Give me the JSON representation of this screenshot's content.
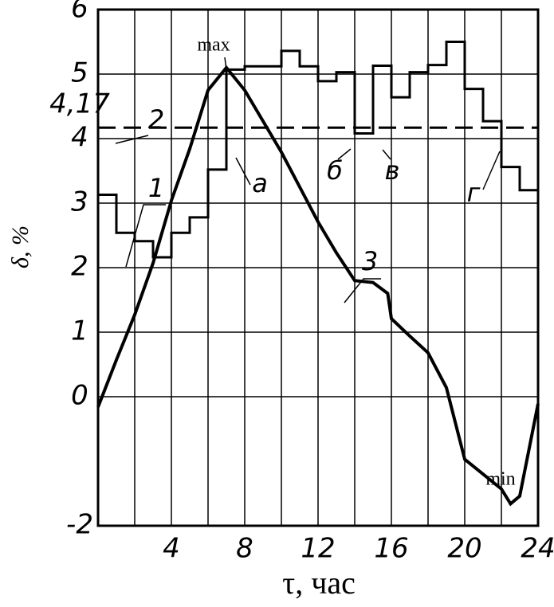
{
  "chart_data": {
    "type": "line",
    "xlabel": "τ, час",
    "ylabel": "δ, %",
    "xlim": [
      0,
      24
    ],
    "xticks": [
      4,
      8,
      12,
      16,
      20,
      24
    ],
    "xgrid": [
      0,
      2,
      4,
      6,
      8,
      10,
      12,
      14,
      16,
      18,
      20,
      22,
      24
    ],
    "ylim": [
      -2,
      6
    ],
    "yticks": [
      -2,
      0,
      1,
      2,
      3,
      4,
      {
        "value": 4.17,
        "label": "4,17"
      },
      5,
      6
    ],
    "grid": true,
    "series": [
      {
        "name": "1",
        "type": "step",
        "color": "#000",
        "x": [
          0,
          1,
          2,
          3,
          4,
          5,
          6,
          7,
          8,
          9,
          10,
          11,
          12,
          13,
          14,
          15,
          16,
          17,
          18,
          19,
          20,
          21,
          22,
          23
        ],
        "values": [
          3.13,
          2.54,
          2.41,
          2.16,
          2.54,
          2.78,
          3.52,
          5.07,
          5.12,
          5.12,
          5.36,
          5.12,
          4.89,
          5.03,
          4.08,
          5.13,
          4.64,
          5.03,
          5.14,
          5.5,
          4.77,
          4.27,
          3.56,
          3.2
        ]
      },
      {
        "name": "2",
        "type": "dashed",
        "color": "#000",
        "x": [
          0,
          24
        ],
        "values": [
          4.17,
          4.17
        ]
      },
      {
        "name": "3",
        "type": "line",
        "color": "#000",
        "x": [
          0,
          1,
          2,
          3,
          4,
          5,
          6,
          7,
          8,
          9,
          10,
          11,
          12,
          13,
          14,
          15,
          15.8,
          16,
          17,
          18,
          19,
          20,
          21,
          22,
          22.5,
          23,
          24
        ],
        "values": [
          -0.16,
          0.57,
          1.27,
          2.07,
          3.04,
          3.84,
          4.75,
          5.1,
          4.75,
          4.27,
          3.79,
          3.25,
          2.71,
          2.23,
          1.8,
          1.77,
          1.6,
          1.21,
          0.94,
          0.68,
          0.14,
          -0.97,
          -1.2,
          -1.43,
          -1.66,
          -1.54,
          -0.11
        ]
      }
    ],
    "annotations": [
      "max",
      "min",
      "а",
      "б",
      "в",
      "г"
    ]
  }
}
